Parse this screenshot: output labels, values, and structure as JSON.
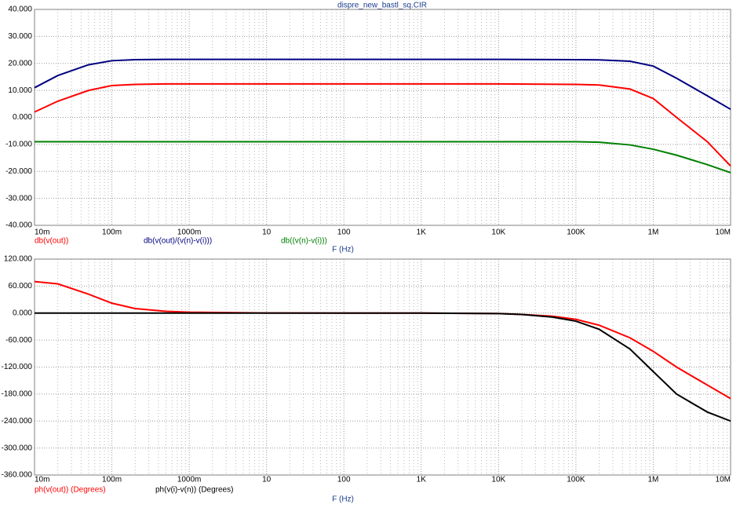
{
  "chart_data": [
    {
      "type": "line",
      "title": "dispre_new_bastl_sq.CIR",
      "x_label": "F (Hz)",
      "log_x": true,
      "grid": true,
      "x": [
        0.01,
        0.02,
        0.05,
        0.1,
        0.2,
        0.5,
        1,
        10,
        100,
        1000,
        10000,
        100000,
        200000,
        500000,
        1000000,
        2000000,
        5000000,
        10000000
      ],
      "xlim": [
        0.01,
        10000000
      ],
      "xticks": [
        {
          "value": 0.01,
          "label": "10m"
        },
        {
          "value": 0.1,
          "label": "100m"
        },
        {
          "value": 1,
          "label": "1000m"
        },
        10,
        100,
        {
          "value": 1000,
          "label": "1K"
        },
        {
          "value": 10000,
          "label": "10K"
        },
        {
          "value": 100000,
          "label": "100K"
        },
        {
          "value": 1000000,
          "label": "1M"
        },
        {
          "value": 10000000,
          "label": "10M"
        }
      ],
      "ylim": [
        -40,
        40
      ],
      "yticks": [
        {
          "value": 40,
          "label": "40.000"
        },
        {
          "value": 30,
          "label": "30.000"
        },
        {
          "value": 20,
          "label": "20.000"
        },
        {
          "value": 10,
          "label": "10.000"
        },
        {
          "value": 0,
          "label": "0.000"
        },
        {
          "value": -10,
          "label": "-10.000"
        },
        {
          "value": -20,
          "label": "-20.000"
        },
        {
          "value": -30,
          "label": "-30.000"
        },
        {
          "value": -40,
          "label": "-40.000"
        }
      ],
      "series": [
        {
          "name": "db(v(out))",
          "color": "#ff0000",
          "values": [
            2,
            6,
            10,
            11.8,
            12.2,
            12.4,
            12.4,
            12.4,
            12.4,
            12.4,
            12.4,
            12.2,
            12,
            10.5,
            7,
            0,
            -9,
            -18
          ]
        },
        {
          "name": "db(v(out)/(v(n)-v(i)))",
          "color": "#000080",
          "values": [
            11,
            15.5,
            19.5,
            21,
            21.4,
            21.5,
            21.5,
            21.5,
            21.5,
            21.5,
            21.5,
            21.4,
            21.3,
            20.8,
            19,
            14.5,
            8,
            3
          ]
        },
        {
          "name": "db((v(n)-v(i)))",
          "color": "#008000",
          "values": [
            -9,
            -9,
            -9,
            -9,
            -9,
            -9,
            -9,
            -9,
            -9,
            -9,
            -9,
            -9,
            -9.2,
            -10.2,
            -11.8,
            -14,
            -17.5,
            -20.5
          ]
        }
      ]
    },
    {
      "type": "line",
      "x_label": "F (Hz)",
      "log_x": true,
      "grid": true,
      "x": [
        0.01,
        0.02,
        0.05,
        0.1,
        0.2,
        0.5,
        1,
        10,
        100,
        1000,
        10000,
        20000,
        50000,
        100000,
        200000,
        500000,
        1000000,
        2000000,
        5000000,
        10000000
      ],
      "xlim": [
        0.01,
        10000000
      ],
      "xticks": [
        {
          "value": 0.01,
          "label": "10m"
        },
        {
          "value": 0.1,
          "label": "100m"
        },
        {
          "value": 1,
          "label": "1000m"
        },
        10,
        100,
        {
          "value": 1000,
          "label": "1K"
        },
        {
          "value": 10000,
          "label": "10K"
        },
        {
          "value": 100000,
          "label": "100K"
        },
        {
          "value": 1000000,
          "label": "1M"
        },
        {
          "value": 10000000,
          "label": "10M"
        }
      ],
      "ylim": [
        -360,
        120
      ],
      "yticks": [
        {
          "value": 120,
          "label": "120.000"
        },
        {
          "value": 60,
          "label": "60.000"
        },
        {
          "value": 0,
          "label": "0.000"
        },
        {
          "value": -60,
          "label": "-60.000"
        },
        {
          "value": -120,
          "label": "-120.000"
        },
        {
          "value": -180,
          "label": "-180.000"
        },
        {
          "value": -240,
          "label": "-240.000"
        },
        {
          "value": -300,
          "label": "-300.000"
        },
        {
          "value": -360,
          "label": "-360.000"
        }
      ],
      "series": [
        {
          "name": "ph(v(out)) (Degrees)",
          "color": "#ff0000",
          "values": [
            70,
            65,
            42,
            22,
            10,
            4,
            2,
            0.2,
            0,
            0,
            -1,
            -3,
            -7,
            -14,
            -27,
            -55,
            -85,
            -120,
            -160,
            -190
          ]
        },
        {
          "name": "ph(v(i)-v(n)) (Degrees)",
          "color": "#000000",
          "values": [
            0,
            0,
            0,
            0,
            0,
            0,
            0,
            0,
            0,
            0,
            -1,
            -3,
            -9,
            -18,
            -36,
            -80,
            -130,
            -180,
            -220,
            -240
          ]
        }
      ]
    }
  ]
}
